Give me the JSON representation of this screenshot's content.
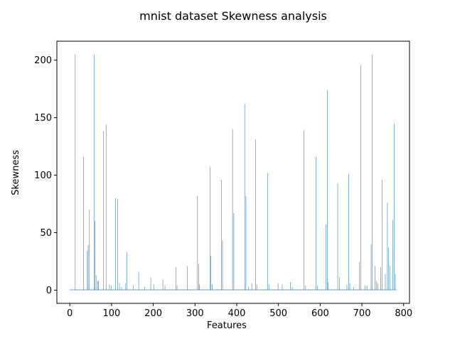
{
  "chart_data": {
    "type": "bar",
    "title": "mnist dataset Skewness analysis",
    "xlabel": "Features",
    "ylabel": "Skewness",
    "xlim": [
      -31,
      814
    ],
    "ylim": [
      -11.5,
      216.5
    ],
    "xticks": [
      0,
      100,
      200,
      300,
      400,
      500,
      600,
      700,
      800
    ],
    "yticks": [
      0,
      50,
      100,
      150,
      200
    ],
    "bar_color": "#1f77b4",
    "grid": false,
    "legend": "none",
    "baseline_value": 0.5,
    "x_count": 784,
    "peaks": [
      [
        13,
        205
      ],
      [
        33,
        116
      ],
      [
        42,
        34
      ],
      [
        44,
        39
      ],
      [
        47,
        70
      ],
      [
        58,
        205
      ],
      [
        60,
        60
      ],
      [
        63,
        13
      ],
      [
        67,
        8
      ],
      [
        69,
        8
      ],
      [
        81,
        138
      ],
      [
        87,
        144
      ],
      [
        95,
        5
      ],
      [
        99,
        4
      ],
      [
        110,
        80
      ],
      [
        115,
        79
      ],
      [
        119,
        6
      ],
      [
        124,
        3
      ],
      [
        134,
        6
      ],
      [
        137,
        33
      ],
      [
        152,
        4
      ],
      [
        165,
        16
      ],
      [
        179,
        3
      ],
      [
        194,
        11
      ],
      [
        201,
        5
      ],
      [
        223,
        9
      ],
      [
        228,
        4
      ],
      [
        254,
        20
      ],
      [
        257,
        4
      ],
      [
        282,
        21
      ],
      [
        306,
        82
      ],
      [
        309,
        23
      ],
      [
        311,
        5
      ],
      [
        336,
        107
      ],
      [
        338,
        30
      ],
      [
        341,
        5
      ],
      [
        363,
        96
      ],
      [
        366,
        43
      ],
      [
        390,
        140
      ],
      [
        393,
        67
      ],
      [
        419,
        162
      ],
      [
        422,
        82
      ],
      [
        428,
        3
      ],
      [
        436,
        6
      ],
      [
        445,
        131
      ],
      [
        448,
        5
      ],
      [
        474,
        102
      ],
      [
        477,
        5
      ],
      [
        499,
        6
      ],
      [
        509,
        5
      ],
      [
        529,
        7
      ],
      [
        533,
        3
      ],
      [
        561,
        139
      ],
      [
        565,
        4
      ],
      [
        590,
        116
      ],
      [
        593,
        4
      ],
      [
        614,
        57
      ],
      [
        617,
        174
      ],
      [
        619,
        7
      ],
      [
        642,
        93
      ],
      [
        646,
        11
      ],
      [
        664,
        5
      ],
      [
        668,
        101
      ],
      [
        671,
        6
      ],
      [
        680,
        3
      ],
      [
        694,
        24
      ],
      [
        697,
        196
      ],
      [
        707,
        4
      ],
      [
        712,
        4
      ],
      [
        722,
        40
      ],
      [
        725,
        205
      ],
      [
        731,
        21
      ],
      [
        735,
        8
      ],
      [
        738,
        6
      ],
      [
        745,
        20
      ],
      [
        748,
        96
      ],
      [
        756,
        14
      ],
      [
        761,
        76
      ],
      [
        764,
        37
      ],
      [
        767,
        21
      ],
      [
        774,
        61
      ],
      [
        777,
        145
      ],
      [
        780,
        14
      ]
    ]
  }
}
